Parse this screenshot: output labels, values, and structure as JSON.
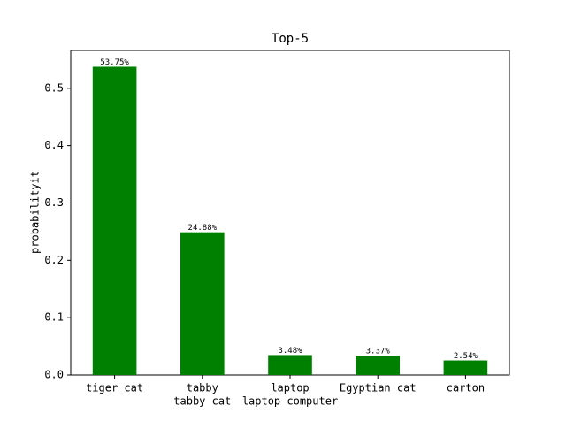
{
  "chart_data": {
    "type": "bar",
    "title": "Top-5",
    "y_label": "probabilityit",
    "categories": [
      [
        "tiger cat"
      ],
      [
        "tabby",
        "tabby cat"
      ],
      [
        "laptop",
        "laptop computer"
      ],
      [
        "Egyptian cat"
      ],
      [
        "carton"
      ]
    ],
    "values": [
      0.5375,
      0.2488,
      0.0348,
      0.0337,
      0.0254
    ],
    "value_labels": [
      "53.75%",
      "24.88%",
      "3.48%",
      "3.37%",
      "2.54%"
    ],
    "color": "#008000",
    "ylim": [
      0,
      0.566
    ],
    "yticks": [
      {
        "value": 0,
        "label": "0.0"
      },
      0.1,
      0.2,
      0.3,
      0.4,
      0.5
    ],
    "grid": false
  }
}
